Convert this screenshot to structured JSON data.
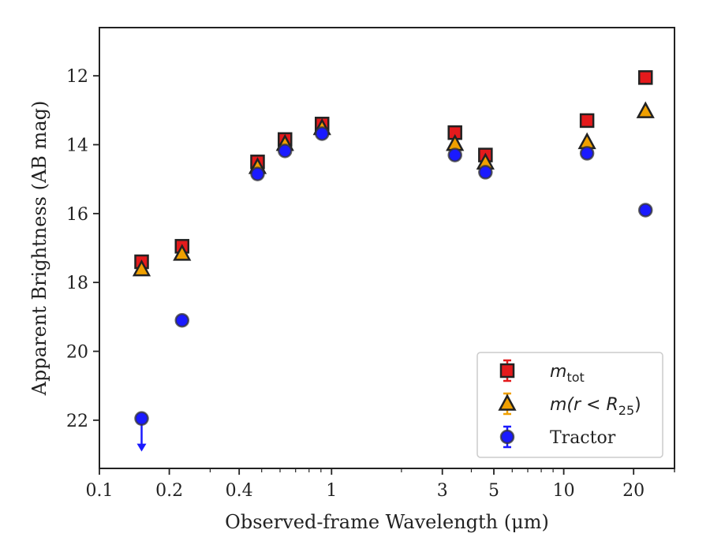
{
  "chart_data": {
    "type": "scatter",
    "xlabel": "Observed-frame Wavelength (μm)",
    "ylabel": "Apparent Brightness (AB mag)",
    "x_scale": "log",
    "y_inverted": true,
    "xlim": [
      0.1,
      30
    ],
    "ylim": [
      23.4,
      10.6
    ],
    "x_ticks": [
      {
        "value": 0.1,
        "label": "0.1"
      },
      {
        "value": 0.2,
        "label": "0.2"
      },
      {
        "value": 0.4,
        "label": "0.4"
      },
      {
        "value": 1,
        "label": "1"
      },
      {
        "value": 3,
        "label": "3"
      },
      {
        "value": 5,
        "label": "5"
      },
      {
        "value": 10,
        "label": "10"
      },
      {
        "value": 20,
        "label": "20"
      }
    ],
    "y_ticks": [
      {
        "value": 12,
        "label": "12"
      },
      {
        "value": 14,
        "label": "14"
      },
      {
        "value": 16,
        "label": "16"
      },
      {
        "value": 18,
        "label": "18"
      },
      {
        "value": 20,
        "label": "20"
      },
      {
        "value": 22,
        "label": "22"
      }
    ],
    "grid": false,
    "legend_position": "lower right",
    "series": [
      {
        "name": "m_tot",
        "legend_main": "m",
        "legend_sub": "tot",
        "legend_tail": "",
        "marker": "square",
        "color": "#e41a1c",
        "points": [
          {
            "x": 0.152,
            "y": 17.4
          },
          {
            "x": 0.227,
            "y": 16.95
          },
          {
            "x": 0.48,
            "y": 14.5
          },
          {
            "x": 0.63,
            "y": 13.85
          },
          {
            "x": 0.91,
            "y": 13.4
          },
          {
            "x": 3.4,
            "y": 13.65
          },
          {
            "x": 4.6,
            "y": 14.3
          },
          {
            "x": 12.6,
            "y": 13.3
          },
          {
            "x": 22.5,
            "y": 12.05
          }
        ]
      },
      {
        "name": "m(r<R_25)",
        "legend_main": "m(r < R",
        "legend_sub": "25",
        "legend_tail": ")",
        "marker": "triangle",
        "color": "#f0a000",
        "points": [
          {
            "x": 0.152,
            "y": 17.62
          },
          {
            "x": 0.227,
            "y": 17.17
          },
          {
            "x": 0.48,
            "y": 14.65
          },
          {
            "x": 0.63,
            "y": 13.98
          },
          {
            "x": 0.91,
            "y": 13.52
          },
          {
            "x": 3.4,
            "y": 13.98
          },
          {
            "x": 4.6,
            "y": 14.52
          },
          {
            "x": 12.6,
            "y": 13.93
          },
          {
            "x": 22.5,
            "y": 13.03
          }
        ]
      },
      {
        "name": "Tractor",
        "legend_main": "Tractor",
        "legend_sub": "",
        "legend_tail": "",
        "marker": "circle",
        "color": "#1a1aff",
        "points": [
          {
            "x": 0.152,
            "y": 21.95,
            "upper_limit": true
          },
          {
            "x": 0.227,
            "y": 19.1
          },
          {
            "x": 0.48,
            "y": 14.85
          },
          {
            "x": 0.63,
            "y": 14.18
          },
          {
            "x": 0.91,
            "y": 13.68
          },
          {
            "x": 3.4,
            "y": 14.3
          },
          {
            "x": 4.6,
            "y": 14.8
          },
          {
            "x": 12.6,
            "y": 14.25
          },
          {
            "x": 22.5,
            "y": 15.9
          }
        ]
      }
    ]
  }
}
